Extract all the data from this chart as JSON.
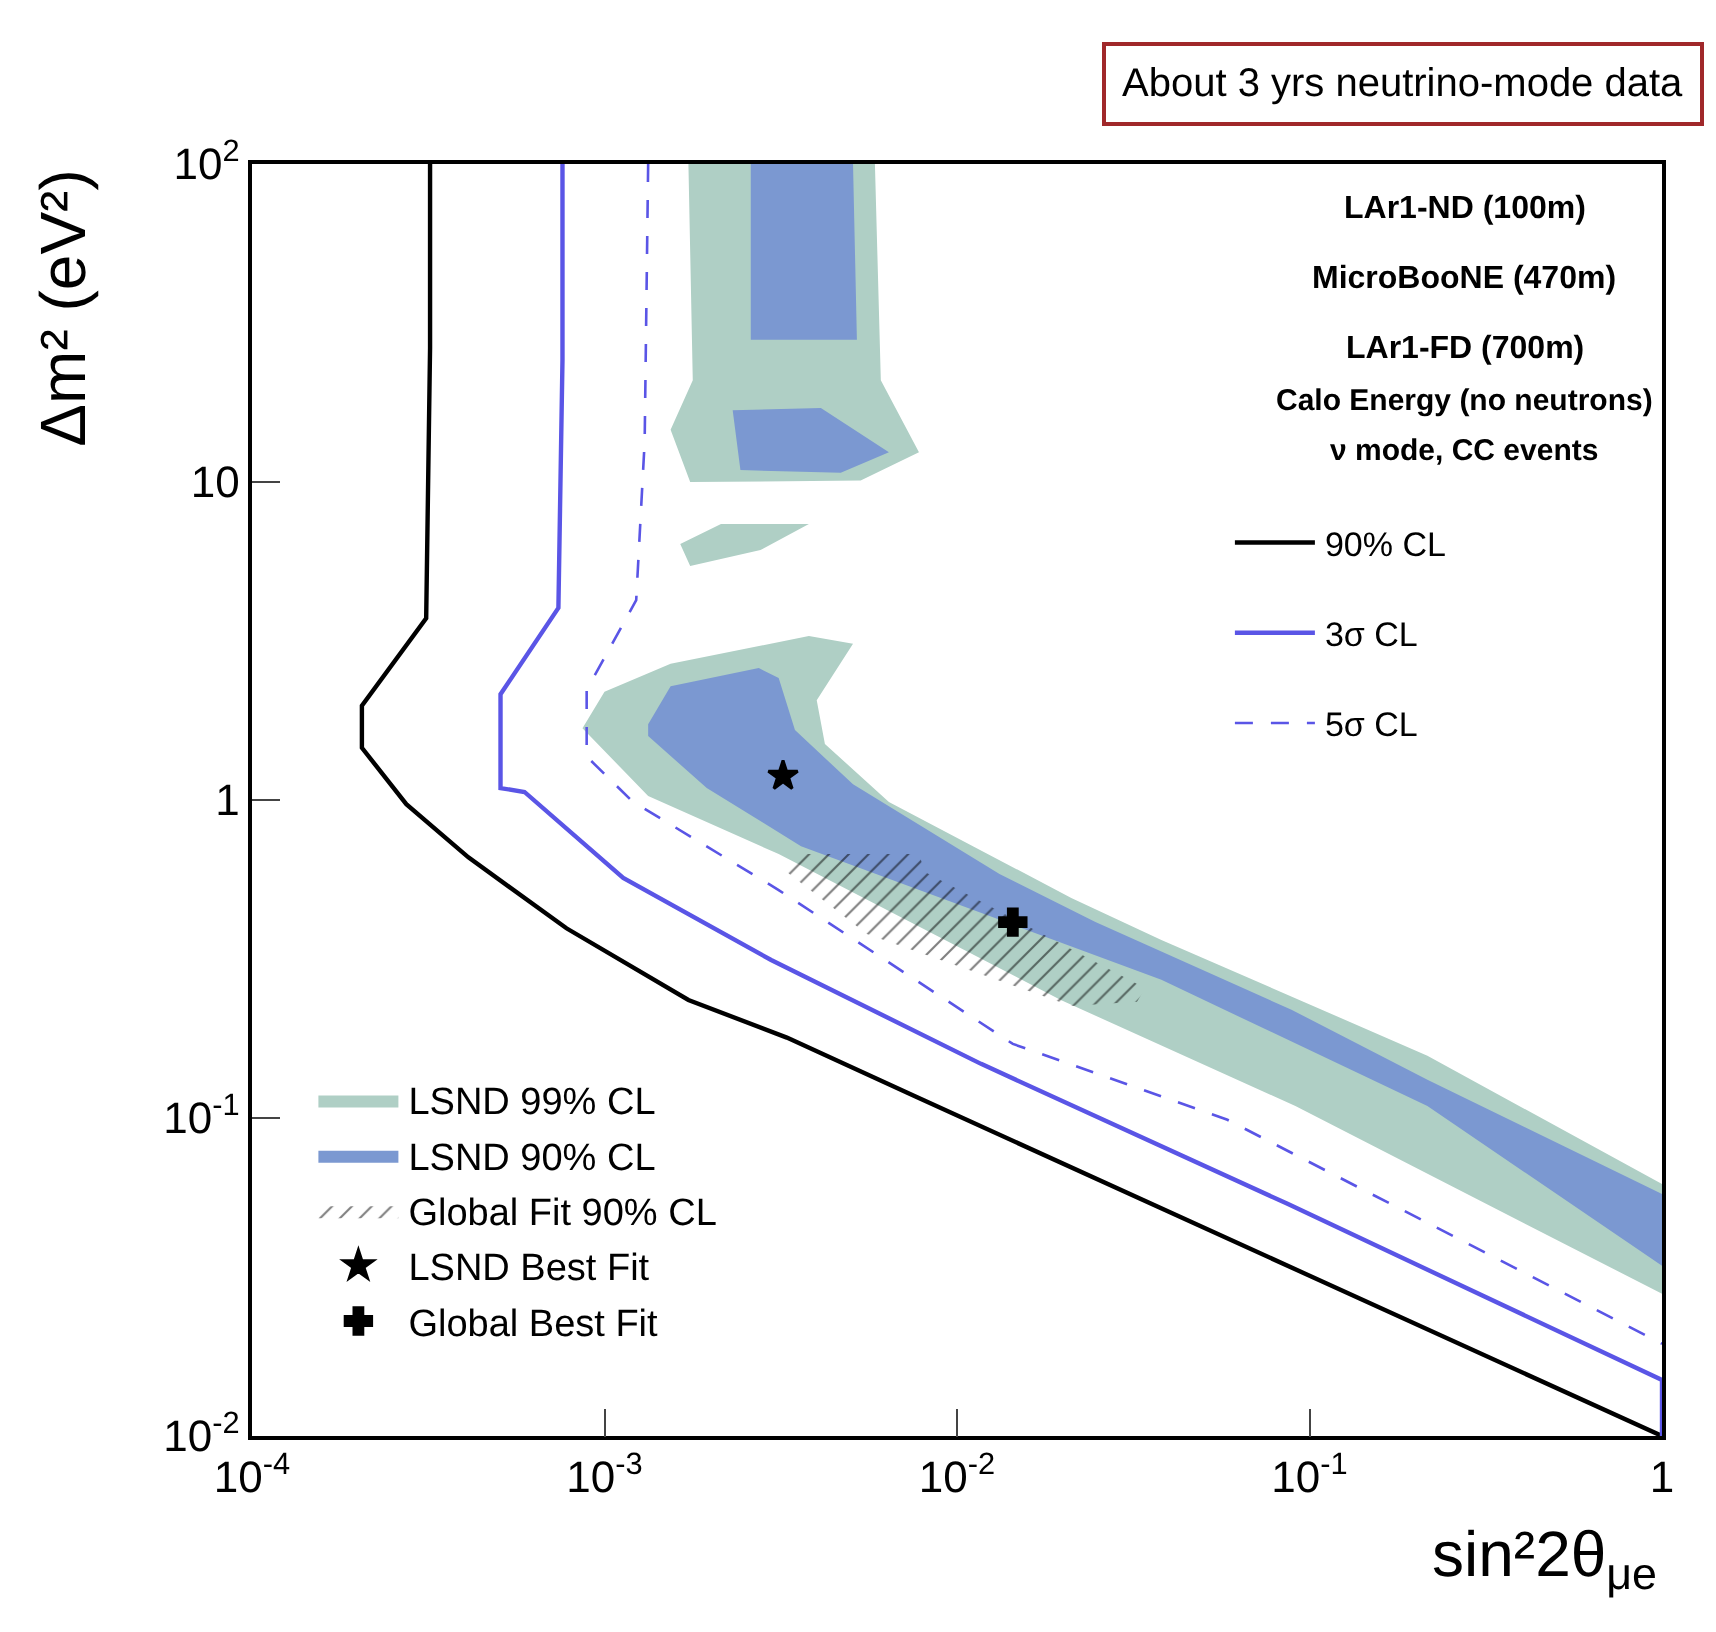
{
  "chart_data": {
    "type": "area",
    "xlabel": "sin²2θ$_{μe}$",
    "ylabel": "Δm² (eV²)",
    "log": "xy",
    "xlim": [
      0.0001,
      1
    ],
    "ylim": [
      0.01,
      100
    ],
    "xticks": [
      {
        "value": 0.0001,
        "label": "10$^{-4}$"
      },
      {
        "value": 0.001,
        "label": "10$^{-3}$"
      },
      {
        "value": 0.01,
        "label": "10$^{-2}$"
      },
      {
        "value": 0.1,
        "label": "10$^{-1}$"
      },
      1
    ],
    "yticks": [
      {
        "value": 0.01,
        "label": "10$^{-2}$"
      },
      {
        "value": 0.1,
        "label": "10$^{-1}$"
      },
      1,
      10,
      {
        "value": 100,
        "label": "10$^{2}$"
      }
    ],
    "legend": "bottom left",
    "annotations": [
      "About 3 yrs neutrino-mode data",
      "LAr1-ND (100m)",
      "MicroBooNE (470m)",
      "LAr1-FD (700m)",
      "Calo Energy (no neutrons)",
      "ν mode, CC events"
    ],
    "series": [
      {
        "name": "LSND 99% CL",
        "color": "#afcfc5",
        "x": [
          0.000866,
          0.001,
          0.00154,
          0.0038,
          0.00507,
          0.004,
          0.00422,
          0.00641,
          0.0211,
          0.038,
          0.216,
          1,
          1,
          0.0912,
          0.0197,
          0.00312,
          0.00133,
          0.000866,
          null,
          0.00173,
          0.00585,
          0.00608,
          0.0078,
          0.00533,
          0.00175,
          0.00154,
          0.00178,
          0.00173,
          null,
          0.00164,
          0.00214,
          0.0038,
          0.00277,
          0.00175,
          0.00164
        ],
        "values": [
          1.68,
          2.19,
          2.68,
          3.28,
          3.1,
          2.06,
          1.5,
          0.986,
          0.492,
          0.363,
          0.157,
          0.062,
          0.028,
          0.109,
          0.235,
          0.676,
          1.03,
          1.68,
          null,
          100,
          100,
          20.9,
          12.4,
          10.1,
          10,
          14.6,
          20.9,
          100,
          null,
          6.38,
          7.38,
          7.38,
          6.11,
          5.44,
          6.38
        ]
      },
      {
        "name": "LSND 90% CL",
        "color": "#7b98d1",
        "x": [
          0.00133,
          0.00154,
          0.00274,
          0.00312,
          0.00347,
          0.00507,
          0.0132,
          0.0247,
          0.0889,
          0.216,
          1,
          1,
          0.216,
          0.038,
          0.00361,
          0.00195,
          0.00133,
          null,
          0.0026,
          0.00507,
          0.0052,
          0.0026,
          0.0026,
          null,
          0.00231,
          0.00411,
          0.00641,
          0.00468,
          0.00243,
          0.00231
        ],
        "values": [
          1.73,
          2.28,
          2.6,
          2.42,
          1.66,
          1.12,
          0.585,
          0.413,
          0.219,
          0.132,
          0.0577,
          0.0343,
          0.109,
          0.272,
          0.716,
          1.09,
          1.59,
          null,
          100,
          100,
          28.0,
          28.0,
          100,
          null,
          16.8,
          17.1,
          12.4,
          10.7,
          10.9,
          16.8
        ]
      },
      {
        "name": "Global Fit 90% CL",
        "color": "#000000",
        "x": [
          0.00329,
          0.00347,
          0.0078,
          0.00811,
          0.0342,
          0.0324,
          0.0211,
          0.00555,
          0.00329
        ],
        "values": [
          0.594,
          0.676,
          0.676,
          0.594,
          0.256,
          0.232,
          0.225,
          0.379,
          0.594
        ]
      },
      {
        "name": "90% CL",
        "type": "line",
        "color": "#000000",
        "line_style": "solid",
        "x": [
          0.00032,
          0.00032,
          0.000312,
          0.000205,
          0.000205,
          0.000274,
          0.000411,
          0.00078,
          0.00173,
          0.00329,
          0.0076,
          1
        ],
        "values": [
          100,
          26.4,
          3.73,
          1.98,
          1.46,
          0.97,
          0.66,
          0.395,
          0.235,
          0.179,
          0.117,
          0.01
        ]
      },
      {
        "name": "3σ CL",
        "type": "line",
        "color": "#5a55e6",
        "line_style": "solid",
        "x": [
          0.00076,
          0.00076,
          0.00074,
          0.000507,
          0.000507,
          0.000593,
          0.00113,
          0.00297,
          0.0117,
          0.0866,
          1,
          1
        ],
        "values": [
          100,
          24.2,
          4.02,
          2.15,
          1.09,
          1.06,
          0.569,
          0.314,
          0.148,
          0.0537,
          0.015,
          0.01
        ]
      },
      {
        "name": "5σ CL",
        "type": "line",
        "color": "#5a55e6",
        "line_style": "dashed",
        "x": [
          0.00133,
          0.0013,
          0.00123,
          0.00089,
          0.00089,
          0.0012,
          0.00312,
          0.0144,
          0.0585,
          1
        ],
        "values": [
          100,
          13.4,
          4.25,
          2.22,
          1.37,
          0.99,
          0.521,
          0.171,
          0.0987,
          0.0195
        ]
      },
      {
        "name": "LSND Best Fit",
        "type": "scatter",
        "marker": "star",
        "color": "#000000",
        "x": [
          0.00321
        ],
        "values": [
          1.19
        ]
      },
      {
        "name": "Global Best Fit",
        "type": "scatter",
        "marker": "cross",
        "color": "#000000",
        "x": [
          0.0144
        ],
        "values": [
          0.413
        ]
      }
    ]
  }
}
